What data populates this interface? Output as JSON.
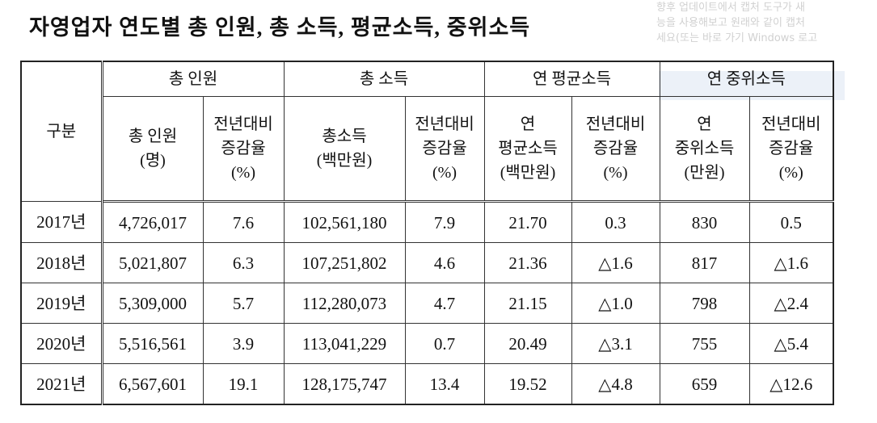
{
  "header": {
    "title": "자영업자 연도별 총 인원, 총 소득, 평균소득, 중위소득"
  },
  "overlay": {
    "lines": [
      "향후 업데이트에서 캡처 도구가 새",
      "능을 사용해보고 원래와 같이 캡처",
      "세요(또는 바로 가기 Windows 로고"
    ]
  },
  "table": {
    "corner": "구분",
    "groups": [
      "총 인원",
      "총 소득",
      "연 평균소득",
      "연 중위소득"
    ],
    "subheaders": [
      "총 인원\n(명)",
      "전년대비\n증감율\n(%)",
      "총소득\n(백만원)",
      "전년대비\n증감율\n(%)",
      "연\n평균소득\n(백만원)",
      "전년대비\n증감율\n(%)",
      "연\n중위소득\n(만원)",
      "전년대비\n증감율\n(%)"
    ],
    "rows": [
      [
        "2017년",
        "4,726,017",
        "7.6",
        "102,561,180",
        "7.9",
        "21.70",
        "0.3",
        "830",
        "0.5"
      ],
      [
        "2018년",
        "5,021,807",
        "6.3",
        "107,251,802",
        "4.6",
        "21.36",
        "△1.6",
        "817",
        "△1.6"
      ],
      [
        "2019년",
        "5,309,000",
        "5.7",
        "112,280,073",
        "4.7",
        "21.15",
        "△1.0",
        "798",
        "△2.4"
      ],
      [
        "2020년",
        "5,516,561",
        "3.9",
        "113,041,229",
        "0.7",
        "20.49",
        "△3.1",
        "755",
        "△5.4"
      ],
      [
        "2021년",
        "6,567,601",
        "19.1",
        "128,175,747",
        "13.4",
        "19.52",
        "△4.8",
        "659",
        "△12.6"
      ]
    ]
  }
}
